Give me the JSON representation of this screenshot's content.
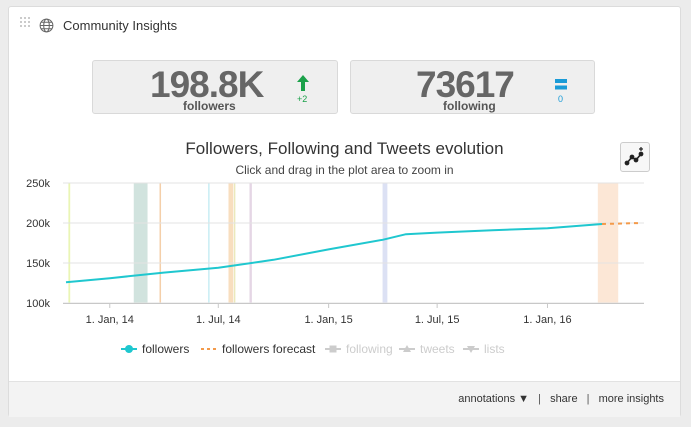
{
  "widget": {
    "title": "Community Insights"
  },
  "stats": {
    "followers": {
      "value": "198.8K",
      "label": "followers",
      "delta": "+2",
      "trend": "up",
      "color": "#1ba14a"
    },
    "following": {
      "value": "73617",
      "label": "following",
      "delta": "0",
      "trend": "equal",
      "color": "#1a9bd7"
    }
  },
  "chart": {
    "title": "Followers, Following and Tweets evolution",
    "subtitle": "Click and drag in the plot area to zoom in"
  },
  "chart_data": {
    "type": "line",
    "title": "Followers, Following and Tweets evolution",
    "subtitle": "Click and drag in the plot area to zoom in",
    "x_range": [
      "2013-10-15",
      "2016-06-10"
    ],
    "x_ticks": [
      {
        "date": "2014-01-01",
        "label": "1. Jan, 14"
      },
      {
        "date": "2014-07-01",
        "label": "1. Jul, 14"
      },
      {
        "date": "2015-01-01",
        "label": "1. Jan, 15"
      },
      {
        "date": "2015-07-01",
        "label": "1. Jul, 15"
      },
      {
        "date": "2016-01-01",
        "label": "1. Jan, 16"
      }
    ],
    "y_ticks": [
      {
        "value": 100000,
        "label": "100k"
      },
      {
        "value": 150000,
        "label": "150k"
      },
      {
        "value": 200000,
        "label": "200k"
      },
      {
        "value": 250000,
        "label": "250k"
      }
    ],
    "ylim": [
      100000,
      250000
    ],
    "grid": true,
    "legend_position": "bottom",
    "series": [
      {
        "name": "followers",
        "color": "#1fc7cf",
        "enabled": true,
        "points": [
          [
            "2013-10-20",
            126000
          ],
          [
            "2014-01-01",
            131000
          ],
          [
            "2014-04-01",
            138000
          ],
          [
            "2014-07-01",
            144000
          ],
          [
            "2014-10-01",
            154000
          ],
          [
            "2015-01-01",
            167000
          ],
          [
            "2015-04-01",
            179000
          ],
          [
            "2015-05-10",
            186000
          ],
          [
            "2015-07-01",
            188000
          ],
          [
            "2015-10-01",
            191000
          ],
          [
            "2016-01-01",
            193500
          ],
          [
            "2016-04-01",
            198800
          ]
        ]
      },
      {
        "name": "followers forecast",
        "color": "#f39a4a",
        "enabled": true,
        "dashed": true,
        "points": [
          [
            "2016-04-01",
            198800
          ],
          [
            "2016-06-05",
            200000
          ]
        ]
      },
      {
        "name": "following",
        "color": "#cccccc",
        "enabled": false,
        "points": []
      },
      {
        "name": "tweets",
        "color": "#cccccc",
        "enabled": false,
        "points": []
      },
      {
        "name": "lists",
        "color": "#cccccc",
        "enabled": false,
        "points": []
      }
    ],
    "annotation_bands": [
      {
        "start": "2013-10-24",
        "end": "2013-10-27",
        "color": "#e6f3a8"
      },
      {
        "start": "2014-02-10",
        "end": "2014-03-05",
        "color": "#c9ded8"
      },
      {
        "start": "2014-03-25",
        "end": "2014-03-27",
        "color": "#f2c79a"
      },
      {
        "start": "2014-06-14",
        "end": "2014-06-16",
        "color": "#bfeaf2"
      },
      {
        "start": "2014-07-18",
        "end": "2014-07-26",
        "color": "#f7d8b4"
      },
      {
        "start": "2014-07-27",
        "end": "2014-07-29",
        "color": "#e8e5b0"
      },
      {
        "start": "2014-08-22",
        "end": "2014-08-26",
        "color": "#e0cfe0"
      },
      {
        "start": "2015-04-01",
        "end": "2015-04-09",
        "color": "#d6dcf2"
      },
      {
        "start": "2016-03-25",
        "end": "2016-04-28",
        "color": "#fbe3cf"
      }
    ]
  },
  "footer": {
    "annotations": "annotations ▼",
    "share": "share",
    "more": "more insights",
    "separator": "|"
  }
}
